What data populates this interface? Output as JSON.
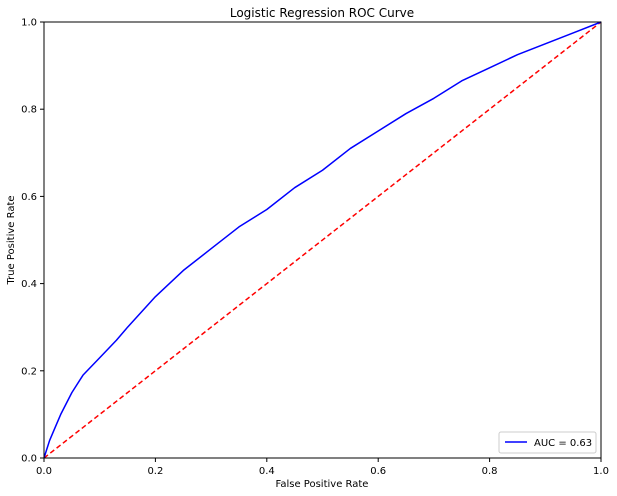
{
  "chart_data": {
    "type": "line",
    "title": "Logistic Regression ROC Curve",
    "xlabel": "False Positive Rate",
    "ylabel": "True Positive Rate",
    "xlim": [
      0,
      1
    ],
    "ylim": [
      0,
      1
    ],
    "xticks": [
      0.0,
      0.2,
      0.4,
      0.6,
      0.8,
      1.0
    ],
    "yticks": [
      0.0,
      0.2,
      0.4,
      0.6,
      0.8,
      1.0
    ],
    "xtick_labels": [
      "0.0",
      "0.2",
      "0.4",
      "0.6",
      "0.8",
      "1.0"
    ],
    "ytick_labels": [
      "0.0",
      "0.2",
      "0.4",
      "0.6",
      "0.8",
      "1.0"
    ],
    "grid": false,
    "legend_position": "lower-right",
    "series": [
      {
        "name": "AUC = 0.63",
        "color": "#0000ff",
        "style": "solid",
        "x": [
          0,
          0.005,
          0.01,
          0.02,
          0.03,
          0.05,
          0.07,
          0.1,
          0.13,
          0.15,
          0.2,
          0.25,
          0.3,
          0.35,
          0.4,
          0.45,
          0.5,
          0.55,
          0.6,
          0.65,
          0.7,
          0.75,
          0.8,
          0.85,
          0.9,
          0.95,
          1.0
        ],
        "y": [
          0,
          0.02,
          0.04,
          0.07,
          0.1,
          0.15,
          0.19,
          0.23,
          0.27,
          0.3,
          0.37,
          0.43,
          0.48,
          0.53,
          0.57,
          0.62,
          0.66,
          0.71,
          0.75,
          0.79,
          0.825,
          0.865,
          0.895,
          0.925,
          0.95,
          0.975,
          1.0
        ]
      },
      {
        "name": "",
        "color": "#ff0000",
        "style": "dashed",
        "x": [
          0,
          1
        ],
        "y": [
          0,
          1
        ]
      }
    ]
  }
}
